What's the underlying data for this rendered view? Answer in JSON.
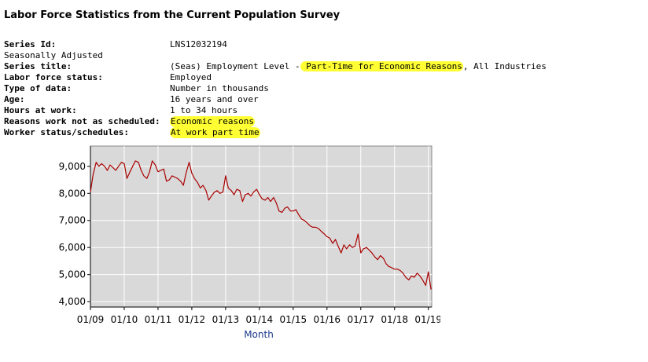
{
  "page": {
    "title": "Labor Force Statistics from the Current Population Survey"
  },
  "series_info": {
    "series_id": {
      "label": "Series Id:",
      "value": "LNS12032194"
    },
    "seasonal": "Seasonally Adjusted",
    "series_title": {
      "label": "Series title:",
      "prefix": "(Seas) Employment Level -",
      "highlight": " Part-Time for Economic Reasons",
      "suffix": ", All Industries"
    },
    "labor_force_status": {
      "label": "Labor force status:",
      "value": "Employed"
    },
    "type_of_data": {
      "label": "Type of data:",
      "value": "Number in thousands"
    },
    "age": {
      "label": "Age:",
      "value": "16 years and over"
    },
    "hours_at_work": {
      "label": "Hours at work:",
      "value": "1 to 34 hours"
    },
    "reasons": {
      "label": "Reasons work not as scheduled:",
      "value": "Economic reasons"
    },
    "worker_status": {
      "label": "Worker status/schedules:",
      "value": "At work part time"
    },
    "highlight_color": "#ffff33"
  },
  "chart_data": {
    "type": "line",
    "xlabel": "Month",
    "ylabel": "",
    "ylim": [
      3800,
      9750
    ],
    "xlim": [
      2009.0,
      2019.1
    ],
    "yticks": [
      4000,
      5000,
      6000,
      7000,
      8000,
      9000
    ],
    "ytick_labels": [
      "4,000",
      "5,000",
      "6,000",
      "7,000",
      "8,000",
      "9,000"
    ],
    "xticks": [
      2009,
      2010,
      2011,
      2012,
      2013,
      2014,
      2015,
      2016,
      2017,
      2018,
      2019
    ],
    "xtick_labels": [
      "01/09",
      "01/10",
      "01/11",
      "01/12",
      "01/13",
      "01/14",
      "01/15",
      "01/16",
      "01/17",
      "01/18",
      "01/19"
    ],
    "grid": true,
    "line_color": "#aa0000",
    "background_color": "#d9d9d9",
    "series": [
      {
        "x": [
          2009.0,
          2009.08,
          2009.17,
          2009.25,
          2009.33,
          2009.42,
          2009.5,
          2009.58,
          2009.67,
          2009.75,
          2009.83,
          2009.92,
          2010.0,
          2010.08,
          2010.17,
          2010.25,
          2010.33,
          2010.42,
          2010.5,
          2010.58,
          2010.67,
          2010.75,
          2010.83,
          2010.92,
          2011.0,
          2011.08,
          2011.17,
          2011.25,
          2011.33,
          2011.42,
          2011.5,
          2011.58,
          2011.67,
          2011.75,
          2011.83,
          2011.92,
          2012.0,
          2012.08,
          2012.17,
          2012.25,
          2012.33,
          2012.42,
          2012.5,
          2012.58,
          2012.67,
          2012.75,
          2012.83,
          2012.92,
          2013.0,
          2013.08,
          2013.17,
          2013.25,
          2013.33,
          2013.42,
          2013.5,
          2013.58,
          2013.67,
          2013.75,
          2013.83,
          2013.92,
          2014.0,
          2014.08,
          2014.17,
          2014.25,
          2014.33,
          2014.42,
          2014.5,
          2014.58,
          2014.67,
          2014.75,
          2014.83,
          2014.92,
          2015.0,
          2015.08,
          2015.17,
          2015.25,
          2015.33,
          2015.42,
          2015.5,
          2015.58,
          2015.67,
          2015.75,
          2015.83,
          2015.92,
          2016.0,
          2016.08,
          2016.17,
          2016.25,
          2016.33,
          2016.42,
          2016.5,
          2016.58,
          2016.67,
          2016.75,
          2016.83,
          2016.92,
          2017.0,
          2017.08,
          2017.17,
          2017.25,
          2017.33,
          2017.42,
          2017.5,
          2017.58,
          2017.67,
          2017.75,
          2017.83,
          2017.92,
          2018.0,
          2018.08,
          2018.17,
          2018.25,
          2018.33,
          2018.42,
          2018.5,
          2018.58,
          2018.67,
          2018.75,
          2018.83,
          2018.92,
          2019.0,
          2019.08
        ],
        "values": [
          8050,
          8700,
          9150,
          9000,
          9100,
          9000,
          8850,
          9050,
          8950,
          8850,
          9000,
          9150,
          9100,
          8550,
          8800,
          9000,
          9200,
          9150,
          8850,
          8650,
          8550,
          8800,
          9200,
          9050,
          8800,
          8850,
          8900,
          8450,
          8500,
          8650,
          8600,
          8550,
          8450,
          8300,
          8750,
          9150,
          8750,
          8550,
          8400,
          8200,
          8300,
          8100,
          7750,
          7900,
          8050,
          8100,
          8000,
          8050,
          8650,
          8200,
          8100,
          7950,
          8150,
          8100,
          7700,
          7950,
          8000,
          7900,
          8050,
          8150,
          7950,
          7800,
          7750,
          7850,
          7700,
          7850,
          7650,
          7350,
          7300,
          7450,
          7500,
          7350,
          7350,
          7400,
          7200,
          7050,
          7000,
          6900,
          6800,
          6750,
          6750,
          6700,
          6600,
          6500,
          6400,
          6350,
          6150,
          6300,
          6050,
          5800,
          6100,
          5950,
          6100,
          6000,
          6050,
          6500,
          5800,
          5950,
          6000,
          5900,
          5800,
          5650,
          5550,
          5700,
          5600,
          5400,
          5300,
          5250,
          5200,
          5200,
          5150,
          5050,
          4900,
          4800,
          4950,
          4900,
          5050,
          4950,
          4800,
          4600,
          5100,
          4450
        ]
      }
    ]
  }
}
